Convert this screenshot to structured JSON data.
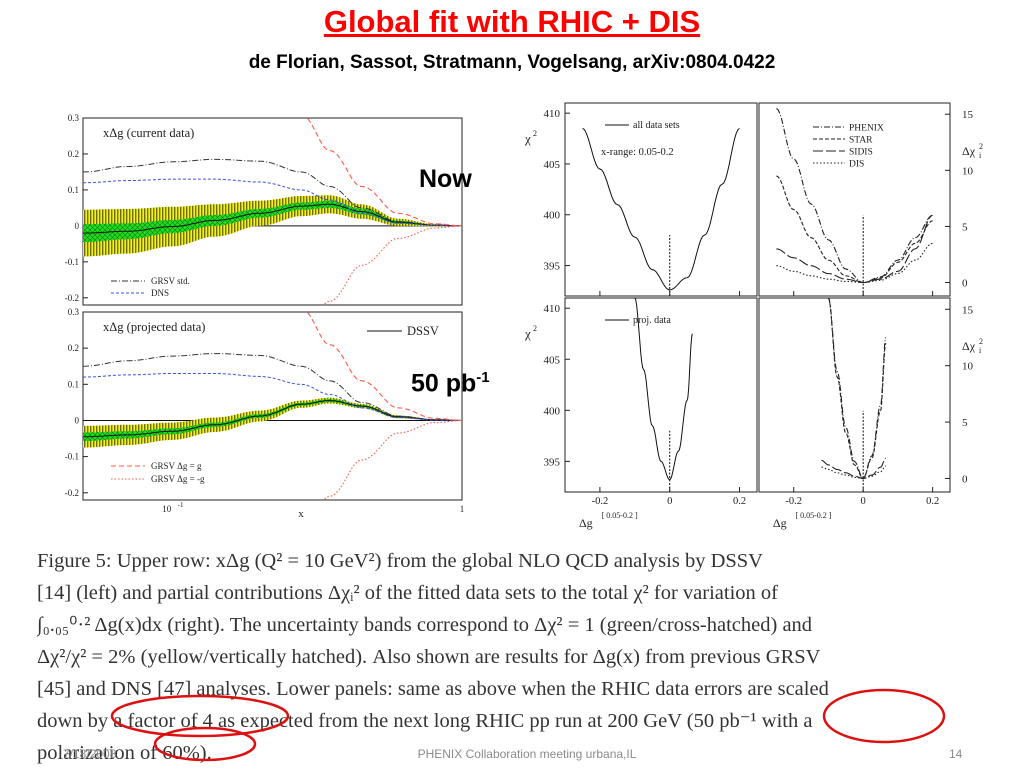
{
  "slide": {
    "title": "Global fit with RHIC + DIS",
    "subtitle": "de Florian, Sassot, Stratmann, Vogelsang, arXiv:0804.0422",
    "label_now": "Now",
    "label_50_base": "50 pb",
    "label_50_sup": "-1"
  },
  "caption": {
    "lines": [
      "Figure 5:  Upper row:  xΔg (Q² = 10 GeV²) from the global NLO QCD analysis by DSSV",
      "[14] (left) and partial contributions Δχᵢ² of the fitted data sets to the total χ² for variation of",
      "∫₀.₀₅⁰·² Δg(x)dx (right). The uncertainty bands correspond to Δχ² = 1 (green/cross-hatched) and",
      "Δχ²/χ² = 2% (yellow/vertically hatched). Also shown are results for Δg(x) from previous GRSV",
      "[45] and DNS [47] analyses. Lower panels: same as above when the RHIC data errors are scaled",
      "down by a factor of 4 as expected from the next long RHIC pp run at 200 GeV (50 pb⁻¹ with a",
      "polarization of 60%)."
    ]
  },
  "footer": {
    "date": "7/18/2008",
    "center": "PHENIX Collaboration meeting urbana,IL",
    "page": "14"
  },
  "colors": {
    "title": "#ff0000",
    "grsv_std": "#333333",
    "dns": "#3a52e0",
    "grsv_dashed": "#ff5a4a",
    "band_yellow": "#f5f50a",
    "band_green": "#22dd22",
    "highlight_circle": "#dd1111"
  },
  "chart_data": [
    {
      "type": "line",
      "panel": "xdg-current",
      "title": "xΔg (current data)",
      "xlabel": "x",
      "x_scale": "log",
      "xlim": [
        0.05,
        1
      ],
      "ylim": [
        -0.22,
        0.3
      ],
      "x_ticks": [
        "10",
        "1"
      ],
      "x_tick_sup": "-1",
      "y_ticks": [
        "0.3",
        "0.2",
        "0.1",
        "0",
        "-0.1",
        "-0.2"
      ],
      "x": [
        0.05,
        0.07,
        0.1,
        0.14,
        0.2,
        0.28,
        0.35,
        0.45,
        0.6,
        0.8,
        1.0
      ],
      "series": [
        {
          "name": "GRSV std.",
          "values": [
            0.15,
            0.165,
            0.178,
            0.185,
            0.18,
            0.15,
            0.11,
            0.05,
            0.012,
            0.002,
            0.0
          ]
        },
        {
          "name": "DNS",
          "values": [
            0.12,
            0.126,
            0.13,
            0.13,
            0.122,
            0.1,
            0.072,
            0.035,
            0.008,
            0.001,
            0.0
          ]
        },
        {
          "name": "band_center",
          "values": [
            -0.02,
            -0.015,
            -0.002,
            0.015,
            0.035,
            0.055,
            0.06,
            0.04,
            0.01,
            0.002,
            0.0
          ]
        },
        {
          "name": "band_green_halfwidth",
          "values": [
            0.025,
            0.022,
            0.018,
            0.015,
            0.012,
            0.01,
            0.01,
            0.008,
            0.004,
            0.001,
            0.0
          ]
        },
        {
          "name": "band_yellow_halfwidth",
          "values": [
            0.065,
            0.062,
            0.055,
            0.045,
            0.035,
            0.028,
            0.025,
            0.02,
            0.01,
            0.003,
            0.0
          ]
        },
        {
          "name": "GRSV Δg = g",
          "values": [
            null,
            null,
            null,
            null,
            null,
            0.31,
            0.21,
            0.11,
            0.035,
            0.006,
            0.0
          ]
        },
        {
          "name": "GRSV Δg = -g",
          "values": [
            null,
            null,
            null,
            null,
            null,
            -0.31,
            -0.21,
            -0.11,
            -0.035,
            -0.006,
            0.0
          ]
        }
      ],
      "legend": [
        "GRSV std.",
        "DNS"
      ]
    },
    {
      "type": "line",
      "panel": "xdg-projected",
      "title": "xΔg (projected data)",
      "xlabel": "x",
      "x_scale": "log",
      "xlim": [
        0.05,
        1
      ],
      "ylim": [
        -0.22,
        0.3
      ],
      "x_ticks": [
        "10",
        "1"
      ],
      "x_tick_sup": "-1",
      "y_ticks": [
        "0.3",
        "0.2",
        "0.1",
        "0",
        "-0.1",
        "-0.2"
      ],
      "x": [
        0.05,
        0.07,
        0.1,
        0.14,
        0.2,
        0.28,
        0.35,
        0.45,
        0.6,
        0.8,
        1.0
      ],
      "series": [
        {
          "name": "GRSV std.",
          "values": [
            0.15,
            0.165,
            0.178,
            0.185,
            0.18,
            0.15,
            0.11,
            0.05,
            0.012,
            0.002,
            0.0
          ]
        },
        {
          "name": "DNS",
          "values": [
            0.12,
            0.126,
            0.13,
            0.13,
            0.122,
            0.1,
            0.072,
            0.035,
            0.008,
            0.001,
            0.0
          ]
        },
        {
          "name": "DSSV",
          "values": [
            -0.045,
            -0.04,
            -0.03,
            -0.012,
            0.012,
            0.045,
            0.055,
            0.04,
            0.01,
            0.002,
            0.0
          ]
        },
        {
          "name": "band_green_halfwidth",
          "values": [
            0.012,
            0.01,
            0.008,
            0.006,
            0.005,
            0.004,
            0.004,
            0.003,
            0.002,
            0.001,
            0.0
          ]
        },
        {
          "name": "band_yellow_halfwidth",
          "values": [
            0.03,
            0.028,
            0.024,
            0.02,
            0.015,
            0.01,
            0.008,
            0.006,
            0.004,
            0.001,
            0.0
          ]
        },
        {
          "name": "GRSV Δg = g",
          "values": [
            null,
            null,
            null,
            null,
            null,
            0.31,
            0.21,
            0.11,
            0.035,
            0.006,
            0.0
          ]
        },
        {
          "name": "GRSV Δg = -g",
          "values": [
            null,
            null,
            null,
            null,
            null,
            -0.31,
            -0.21,
            -0.11,
            -0.035,
            -0.006,
            0.0
          ]
        }
      ],
      "legend": [
        "DSSV",
        "GRSV Δg = g",
        "GRSV Δg = -g"
      ]
    },
    {
      "type": "line",
      "panel": "chi2-current",
      "xlabel": "Δg[0.05-0.2]",
      "ylabel": "χ²",
      "xlim": [
        -0.3,
        0.25
      ],
      "ylim": [
        392,
        411
      ],
      "y_ticks": [
        "410",
        "405",
        "400",
        "395"
      ],
      "annotation": "x-range: 0.05-0.2",
      "x": [
        -0.25,
        -0.2,
        -0.15,
        -0.1,
        -0.05,
        0.0,
        0.05,
        0.1,
        0.15,
        0.2
      ],
      "series": [
        {
          "name": "all data sets",
          "values": [
            408.5,
            404.5,
            401.0,
            397.8,
            394.6,
            392.6,
            393.8,
            398.0,
            403.0,
            408.5
          ]
        }
      ],
      "legend": [
        "all data sets"
      ]
    },
    {
      "type": "line",
      "panel": "dchi2-current",
      "xlabel": "Δg[0.05-0.2]",
      "ylabel": "Δχᵢ²",
      "xlim": [
        -0.3,
        0.25
      ],
      "ylim": [
        -1.2,
        16
      ],
      "y_ticks": [
        "15",
        "10",
        "5",
        "0"
      ],
      "x": [
        -0.25,
        -0.2,
        -0.15,
        -0.1,
        -0.05,
        0.0,
        0.05,
        0.1,
        0.15,
        0.2
      ],
      "series": [
        {
          "name": "PHENIX",
          "values": [
            15.5,
            11.0,
            7.0,
            3.8,
            1.2,
            0.0,
            0.5,
            2.0,
            4.0,
            6.0
          ]
        },
        {
          "name": "STAR",
          "values": [
            9.5,
            6.5,
            4.0,
            2.0,
            0.6,
            0.0,
            0.4,
            1.8,
            3.5,
            5.5
          ]
        },
        {
          "name": "SIDIS",
          "values": [
            3.0,
            2.2,
            1.5,
            0.8,
            0.3,
            0.0,
            0.3,
            1.0,
            3.0,
            6.0
          ]
        },
        {
          "name": "DIS",
          "values": [
            1.5,
            1.0,
            0.6,
            0.3,
            0.1,
            0.0,
            0.2,
            0.8,
            2.0,
            3.5
          ]
        }
      ],
      "legend": [
        "PHENIX",
        "STAR",
        "SIDIS",
        "DIS"
      ]
    },
    {
      "type": "line",
      "panel": "chi2-projected",
      "xlabel": "Δg[0.05-0.2]",
      "ylabel": "χ²",
      "xlim": [
        -0.3,
        0.25
      ],
      "ylim": [
        392,
        411
      ],
      "y_ticks": [
        "410",
        "405",
        "400",
        "395"
      ],
      "x_ticks": [
        "-0.2",
        "0",
        "0.2"
      ],
      "x": [
        -0.1,
        -0.075,
        -0.05,
        -0.025,
        0.0,
        0.025,
        0.05,
        0.065
      ],
      "series": [
        {
          "name": "proj. data",
          "values": [
            411.0,
            404.0,
            398.5,
            395.0,
            393.2,
            396.0,
            401.0,
            407.5
          ]
        }
      ],
      "legend": [
        "proj. data"
      ]
    },
    {
      "type": "line",
      "panel": "dchi2-projected",
      "xlabel": "Δg[0.05-0.2]",
      "ylabel": "Δχᵢ²",
      "xlim": [
        -0.3,
        0.25
      ],
      "ylim": [
        -1.2,
        16
      ],
      "y_ticks": [
        "15",
        "10",
        "5",
        "0"
      ],
      "x_ticks": [
        "-0.2",
        "0",
        "0.2"
      ],
      "x": [
        -0.12,
        -0.1,
        -0.075,
        -0.05,
        -0.025,
        0.0,
        0.025,
        0.05,
        0.065
      ],
      "series": [
        {
          "name": "PHENIX",
          "values": [
            null,
            16.0,
            9.5,
            4.5,
            1.5,
            0.0,
            2.0,
            6.5,
            12.5
          ]
        },
        {
          "name": "STAR",
          "values": [
            null,
            16.0,
            9.0,
            4.0,
            1.2,
            0.0,
            1.8,
            6.0,
            12.0
          ]
        },
        {
          "name": "SIDIS",
          "values": [
            1.6,
            1.2,
            0.8,
            0.5,
            0.2,
            0.0,
            0.3,
            1.0,
            1.8
          ]
        },
        {
          "name": "DIS",
          "values": [
            1.0,
            0.8,
            0.5,
            0.3,
            0.1,
            0.0,
            0.2,
            0.6,
            1.1
          ]
        }
      ]
    }
  ]
}
